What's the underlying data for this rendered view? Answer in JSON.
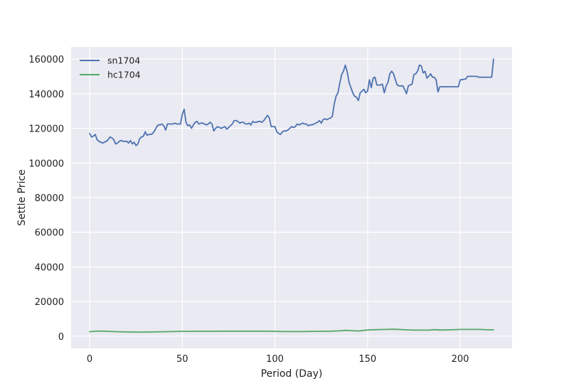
{
  "chart_data": {
    "type": "line",
    "title": "",
    "xlabel": "Period (Day)",
    "ylabel": "Settle Price",
    "xlim": [
      -10,
      228
    ],
    "ylim": [
      -7000,
      167000
    ],
    "xticks": [
      0,
      50,
      100,
      150,
      200
    ],
    "yticks": [
      0,
      20000,
      40000,
      60000,
      80000,
      100000,
      120000,
      140000,
      160000
    ],
    "grid": true,
    "legend_position": "top-left",
    "style": {
      "background": "#EAEAF2",
      "grid_color": "#FFFFFF"
    },
    "series": [
      {
        "name": "sn1704",
        "color": "#4C72B0",
        "x": [
          0,
          1,
          2,
          3,
          4,
          5,
          6,
          7,
          8,
          9,
          10,
          11,
          12,
          13,
          14,
          15,
          16,
          17,
          18,
          19,
          20,
          21,
          22,
          23,
          24,
          25,
          26,
          27,
          28,
          29,
          30,
          31,
          32,
          33,
          34,
          35,
          36,
          37,
          38,
          39,
          40,
          41,
          42,
          43,
          44,
          45,
          46,
          47,
          48,
          49,
          50,
          51,
          52,
          53,
          54,
          55,
          56,
          57,
          58,
          59,
          60,
          61,
          62,
          63,
          64,
          65,
          66,
          67,
          68,
          69,
          70,
          71,
          72,
          73,
          74,
          75,
          76,
          77,
          78,
          79,
          80,
          81,
          82,
          83,
          84,
          85,
          86,
          87,
          88,
          89,
          90,
          91,
          92,
          93,
          94,
          95,
          96,
          97,
          98,
          99,
          100,
          101,
          102,
          103,
          104,
          105,
          106,
          107,
          108,
          109,
          110,
          111,
          112,
          113,
          114,
          115,
          116,
          117,
          118,
          119,
          120,
          121,
          122,
          123,
          124,
          125,
          126,
          127,
          128,
          129,
          130,
          131,
          132,
          133,
          134,
          135,
          136,
          137,
          138,
          139,
          140,
          141,
          142,
          143,
          144,
          145,
          146,
          147,
          148,
          149,
          150,
          151,
          152,
          153,
          154,
          155,
          156,
          157,
          158,
          159,
          160,
          161,
          162,
          163,
          164,
          165,
          166,
          167,
          168,
          169,
          170,
          171,
          172,
          173,
          174,
          175,
          176,
          177,
          178,
          179,
          180,
          181,
          182,
          183,
          184,
          185,
          186,
          187,
          188,
          189,
          190,
          199,
          200,
          203,
          204,
          209,
          210,
          217,
          218
        ],
        "y": [
          117000,
          115000,
          115500,
          116500,
          113500,
          112500,
          112000,
          111500,
          112000,
          112500,
          113500,
          115000,
          114500,
          113500,
          111000,
          111500,
          112500,
          113000,
          112500,
          112500,
          112500,
          111500,
          113000,
          111000,
          112000,
          110000,
          111000,
          114000,
          115000,
          115500,
          118000,
          116000,
          116500,
          116500,
          117000,
          118500,
          120500,
          122000,
          122000,
          122500,
          121500,
          119000,
          122500,
          122500,
          122500,
          122500,
          123000,
          122500,
          122500,
          122500,
          128000,
          131000,
          123500,
          121500,
          122000,
          120000,
          122000,
          123500,
          124000,
          122500,
          123000,
          123000,
          122500,
          122000,
          122500,
          123500,
          122500,
          118500,
          120000,
          121000,
          120500,
          120000,
          120500,
          121000,
          119500,
          120500,
          121500,
          122500,
          124500,
          124500,
          124000,
          123000,
          123500,
          123500,
          122500,
          122500,
          123000,
          122000,
          124000,
          123500,
          123500,
          124000,
          124000,
          123500,
          124500,
          126000,
          127500,
          126000,
          121000,
          121000,
          121000,
          118000,
          117000,
          116500,
          118000,
          118500,
          118500,
          119000,
          120000,
          121000,
          120500,
          121000,
          122500,
          122000,
          122500,
          123000,
          122500,
          122500,
          121500,
          122000,
          122000,
          122500,
          123000,
          123500,
          124500,
          123000,
          125000,
          125500,
          125000,
          125500,
          126000,
          127000,
          134000,
          138500,
          140500,
          146000,
          151000,
          153000,
          156500,
          152500,
          146500,
          143500,
          140500,
          138500,
          138000,
          136000,
          140500,
          141500,
          142500,
          140500,
          141500,
          148000,
          143500,
          149000,
          149500,
          145000,
          145000,
          145000,
          145500,
          140500,
          144500,
          146500,
          151500,
          153000,
          151500,
          148000,
          145000,
          144500,
          144500,
          144500,
          142500,
          140000,
          144500,
          145000,
          145500,
          151000,
          151500,
          153000,
          156500,
          156000,
          152000,
          153000,
          149000,
          150000,
          151500,
          149500,
          149500,
          148000,
          141000,
          144000,
          144000,
          144000,
          148000,
          148500,
          150000,
          150000,
          149500,
          149500,
          160000
        ]
      },
      {
        "name": "hc1704",
        "color": "#55A868",
        "x": [
          0,
          5,
          10,
          15,
          20,
          25,
          30,
          35,
          40,
          45,
          50,
          55,
          60,
          65,
          70,
          75,
          80,
          85,
          90,
          95,
          100,
          105,
          110,
          115,
          120,
          125,
          130,
          135,
          138,
          140,
          145,
          150,
          155,
          160,
          163,
          165,
          170,
          175,
          180,
          183,
          186,
          190,
          195,
          200,
          205,
          210,
          215,
          218
        ],
        "y": [
          2600,
          3000,
          2800,
          2600,
          2500,
          2400,
          2400,
          2500,
          2600,
          2700,
          2800,
          2800,
          2900,
          2800,
          2900,
          2900,
          2900,
          2900,
          2900,
          2900,
          2800,
          2700,
          2700,
          2700,
          2800,
          2800,
          2900,
          3100,
          3400,
          3300,
          3000,
          3600,
          3800,
          3900,
          4000,
          4000,
          3700,
          3500,
          3500,
          3500,
          3800,
          3600,
          3700,
          3900,
          3900,
          3900,
          3700,
          3700
        ]
      }
    ]
  }
}
